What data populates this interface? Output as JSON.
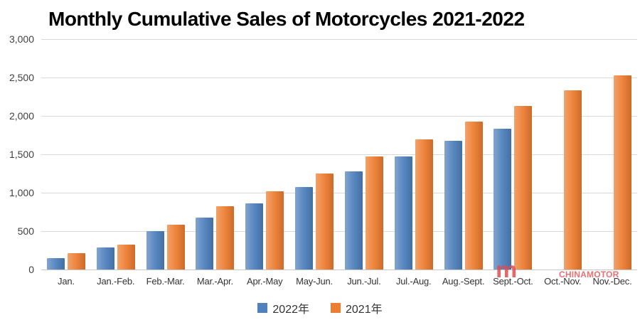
{
  "title": "Monthly Cumulative Sales of Motorcycles 2021-2022",
  "watermark": {
    "logo_glyph": "m",
    "text": "CHINAMOTOR",
    "color": "#dd4f52"
  },
  "colors": {
    "series_2022": "#4f81bd",
    "series_2021": "#ed7d31",
    "gridline": "#d9d9d9",
    "axis_text": "#404040",
    "title_text": "#000000",
    "background": "#ffffff"
  },
  "chart_data": {
    "type": "bar",
    "title": "Monthly Cumulative Sales of Motorcycles 2021-2022",
    "xlabel": "",
    "ylabel": "",
    "ylim": [
      0,
      3000
    ],
    "grid": true,
    "legend_position": "bottom",
    "ytick_values": [
      0,
      500,
      1000,
      1500,
      2000,
      2500,
      3000
    ],
    "ytick_labels": [
      "0",
      "500",
      "1,000",
      "1,500",
      "2,000",
      "2,500",
      "3,000"
    ],
    "categories": [
      "Jan.",
      "Jan.-Feb.",
      "Feb.-Mar.",
      "Mar.-Apr.",
      "Apr.-May",
      "May-Jun.",
      "Jun.-Jul.",
      "Jul.-Aug.",
      "Aug.-Sept.",
      "Sept.-Oct.",
      "Oct.-Nov.",
      "Nov.-Dec."
    ],
    "series": [
      {
        "name": "2022年",
        "color": "#4f81bd",
        "values": [
          150,
          290,
          500,
          680,
          860,
          1070,
          1280,
          1470,
          1680,
          1830,
          null,
          null
        ]
      },
      {
        "name": "2021年",
        "color": "#ed7d31",
        "values": [
          210,
          320,
          580,
          820,
          1020,
          1250,
          1470,
          1690,
          1930,
          2130,
          2330,
          2530
        ]
      }
    ]
  }
}
